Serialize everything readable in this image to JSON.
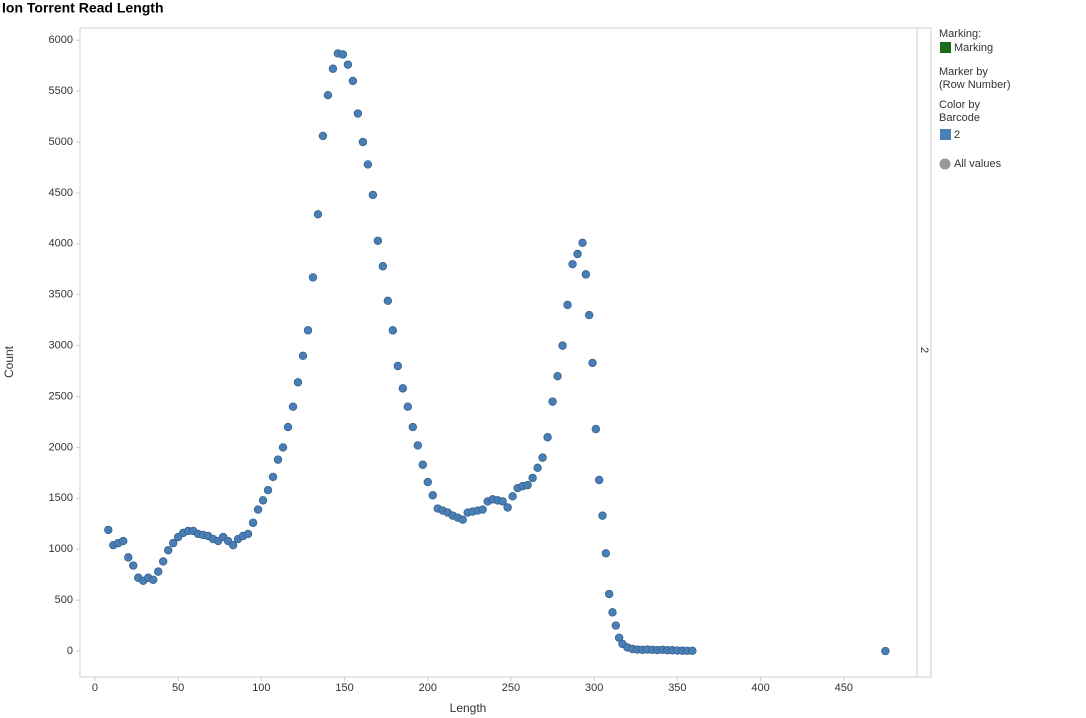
{
  "chart_data": {
    "type": "scatter",
    "title": "Ion Torrent Read Length",
    "x_label": "Length",
    "y_label": "Count",
    "facet_label": "2",
    "legend": {
      "marking_title": "Marking:",
      "marking_item": "Marking",
      "marking_color": "#1a6b1a",
      "marker_title": "Marker by",
      "marker_sub": "(Row Number)",
      "color_title": "Color by",
      "color_sub": "Barcode",
      "all_values": "All values",
      "all_color": "#999999"
    },
    "xlim": [
      -9,
      494
    ],
    "ylim": [
      -255,
      6120
    ],
    "xticks": [
      0,
      50,
      100,
      150,
      200,
      250,
      300,
      350,
      400,
      450
    ],
    "yticks": [
      0,
      500,
      1000,
      1500,
      2000,
      2500,
      3000,
      3500,
      4000,
      4500,
      5000,
      5500,
      6000
    ],
    "grid": false,
    "series": [
      {
        "name": "2",
        "color": "#4a7fb5",
        "x": [
          8,
          11,
          14,
          17,
          20,
          23,
          26,
          29,
          32,
          35,
          38,
          41,
          44,
          47,
          50,
          53,
          56,
          59,
          62,
          65,
          68,
          71,
          74,
          77,
          80,
          83,
          86,
          89,
          92,
          95,
          98,
          101,
          104,
          107,
          110,
          113,
          116,
          119,
          122,
          125,
          128,
          131,
          134,
          137,
          140,
          143,
          146,
          149,
          152,
          155,
          158,
          161,
          164,
          167,
          170,
          173,
          176,
          179,
          182,
          185,
          188,
          191,
          194,
          197,
          200,
          203,
          206,
          209,
          212,
          215,
          218,
          221,
          224,
          227,
          230,
          233,
          236,
          239,
          242,
          245,
          248,
          251,
          254,
          257,
          260,
          263,
          266,
          269,
          272,
          275,
          278,
          281,
          284,
          287,
          290,
          293,
          295,
          297,
          299,
          301,
          303,
          305,
          307,
          309,
          311,
          313,
          315,
          317,
          320,
          323,
          326,
          329,
          332,
          335,
          338,
          341,
          344,
          347,
          350,
          353,
          356,
          359,
          475
        ],
        "values": [
          1190,
          1040,
          1060,
          1080,
          920,
          840,
          720,
          690,
          720,
          700,
          780,
          880,
          990,
          1060,
          1120,
          1160,
          1180,
          1180,
          1150,
          1140,
          1130,
          1100,
          1080,
          1120,
          1080,
          1040,
          1100,
          1130,
          1150,
          1260,
          1390,
          1480,
          1580,
          1710,
          1880,
          2000,
          2200,
          2400,
          2640,
          2900,
          3150,
          3670,
          4290,
          5060,
          5460,
          5720,
          5870,
          5860,
          5760,
          5600,
          5280,
          5000,
          4780,
          4480,
          4030,
          3780,
          3440,
          3150,
          2800,
          2580,
          2400,
          2200,
          2020,
          1830,
          1660,
          1530,
          1400,
          1380,
          1360,
          1330,
          1310,
          1290,
          1360,
          1370,
          1380,
          1390,
          1470,
          1490,
          1480,
          1470,
          1410,
          1520,
          1600,
          1620,
          1630,
          1700,
          1800,
          1900,
          2100,
          2450,
          2700,
          3000,
          3400,
          3800,
          3900,
          4010,
          3700,
          3300,
          2830,
          2180,
          1680,
          1330,
          960,
          560,
          380,
          250,
          130,
          70,
          35,
          20,
          15,
          12,
          15,
          12,
          10,
          12,
          8,
          8,
          5,
          3,
          2,
          2,
          0
        ]
      }
    ]
  }
}
